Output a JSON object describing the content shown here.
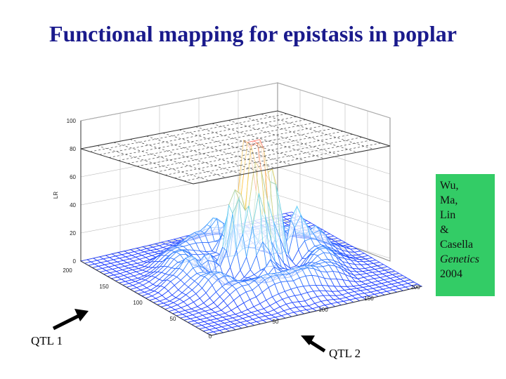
{
  "title": "Functional mapping for epistasis in poplar",
  "axis": {
    "z_label": "LR",
    "z_ticks": [
      "100",
      "80",
      "60",
      "40",
      "20",
      "0"
    ],
    "x_ticks": [
      "200",
      "150",
      "100",
      "50",
      "0"
    ],
    "y_ticks": [
      "200",
      "150",
      "100",
      "50"
    ]
  },
  "citation": {
    "lines": [
      "Wu,",
      "Ma,",
      "Lin",
      "&",
      "Casella"
    ],
    "journal": "Genetics",
    "year": "2004",
    "color": "#33cc66"
  },
  "labels": {
    "qtl1": "QTL 1",
    "qtl2": "QTL 2"
  },
  "colors": {
    "title": "#1a1a8c",
    "surface_low": "#1e3cff",
    "surface_mid": "#5ad2ff",
    "surface_high": "#ffd04a",
    "peak": "#ff3a2a"
  }
}
